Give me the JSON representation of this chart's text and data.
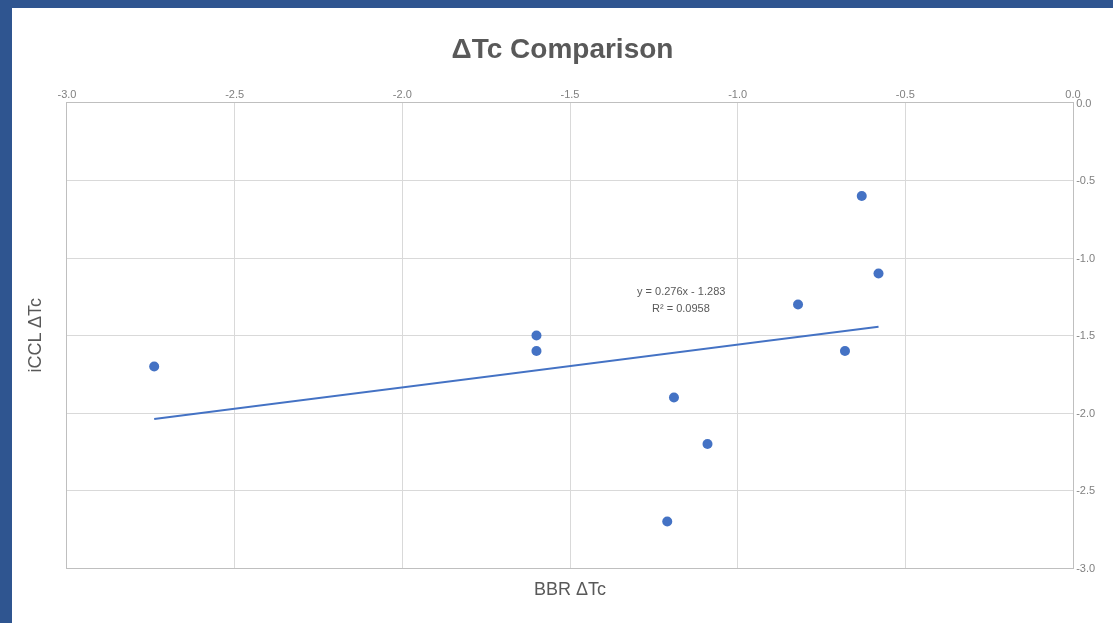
{
  "chart_data": {
    "type": "scatter",
    "title": "ΔTc Comparison",
    "xlabel": "BBR ΔTc",
    "ylabel": "iCCL ΔTc",
    "x": [
      -2.74,
      -1.6,
      -1.6,
      -1.19,
      -1.09,
      -1.21,
      -0.82,
      -0.68,
      -0.63,
      -0.58
    ],
    "series": [
      {
        "color": "#4472c4",
        "values": [
          -1.7,
          -1.5,
          -1.6,
          -1.9,
          -2.2,
          -2.7,
          -1.3,
          -1.6,
          -0.6,
          -1.1
        ],
        "marker": "circle"
      },
      {
        "type": "line",
        "color": "#4472c4",
        "x": [
          -2.74,
          -0.58
        ],
        "values": [
          -2.039,
          -1.443
        ],
        "line_style": "solid",
        "marker": "none"
      }
    ],
    "xlim": [
      -3,
      0
    ],
    "ylim": [
      -3,
      0
    ],
    "xticks": [
      {
        "value": -3,
        "label": "-3.0"
      },
      {
        "value": -2.5,
        "label": "-2.5"
      },
      {
        "value": -2,
        "label": "-2.0"
      },
      {
        "value": -1.5,
        "label": "-1.5"
      },
      {
        "value": -1,
        "label": "-1.0"
      },
      {
        "value": -0.5,
        "label": "-0.5"
      },
      {
        "value": 0,
        "label": "0.0"
      }
    ],
    "yticks": [
      {
        "value": 0,
        "label": "0.0"
      },
      {
        "value": -0.5,
        "label": "-0.5"
      },
      {
        "value": -1,
        "label": "-1.0"
      },
      {
        "value": -1.5,
        "label": "-1.5"
      },
      {
        "value": -2,
        "label": "-2.0"
      },
      {
        "value": -2.5,
        "label": "-2.5"
      },
      {
        "value": -3,
        "label": "-3.0"
      }
    ],
    "grid": true,
    "annotations": [
      "y = 0.276x - 1.283",
      "R² = 0.0958"
    ]
  }
}
